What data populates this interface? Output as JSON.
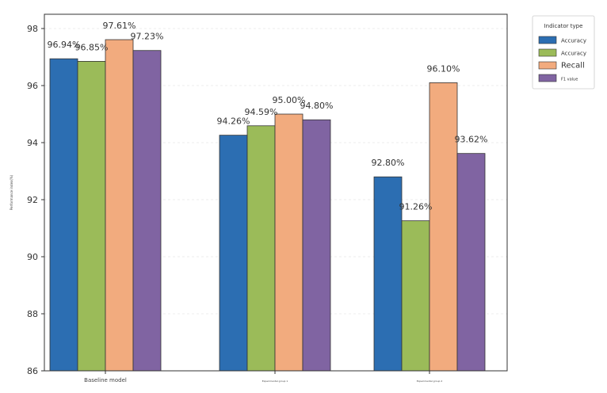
{
  "chart_data": {
    "type": "bar",
    "title": "",
    "xlabel": "",
    "ylabel": "Performance index(%)",
    "ylim": [
      86,
      98.5
    ],
    "yticks": [
      86,
      88,
      90,
      92,
      94,
      96,
      98
    ],
    "grid": true,
    "categories": [
      "Baseline model",
      "Experimental group 1",
      "Experimental group 2"
    ],
    "legend": {
      "title": "Indicator type",
      "placement": "outside-top-right"
    },
    "series": [
      {
        "name": "Accuracy",
        "color": "#2c6eb2",
        "values": [
          96.94,
          94.26,
          92.8
        ],
        "labels": [
          "96.94%",
          "94.26%",
          "92.80%"
        ]
      },
      {
        "name": "Accuracy",
        "color": "#9bbb59",
        "values": [
          96.85,
          94.59,
          91.26
        ],
        "labels": [
          "96.85%",
          "94.59%",
          "91.26%"
        ]
      },
      {
        "name": "Recall",
        "color": "#f2ab7e",
        "values": [
          97.61,
          95.0,
          96.1
        ],
        "labels": [
          "97.61%",
          "95.00%",
          "96.10%"
        ]
      },
      {
        "name": "F1 value",
        "color": "#8064a2",
        "values": [
          97.23,
          94.8,
          93.62
        ],
        "labels": [
          "97.23%",
          "94.80%",
          "93.62%"
        ]
      }
    ]
  }
}
